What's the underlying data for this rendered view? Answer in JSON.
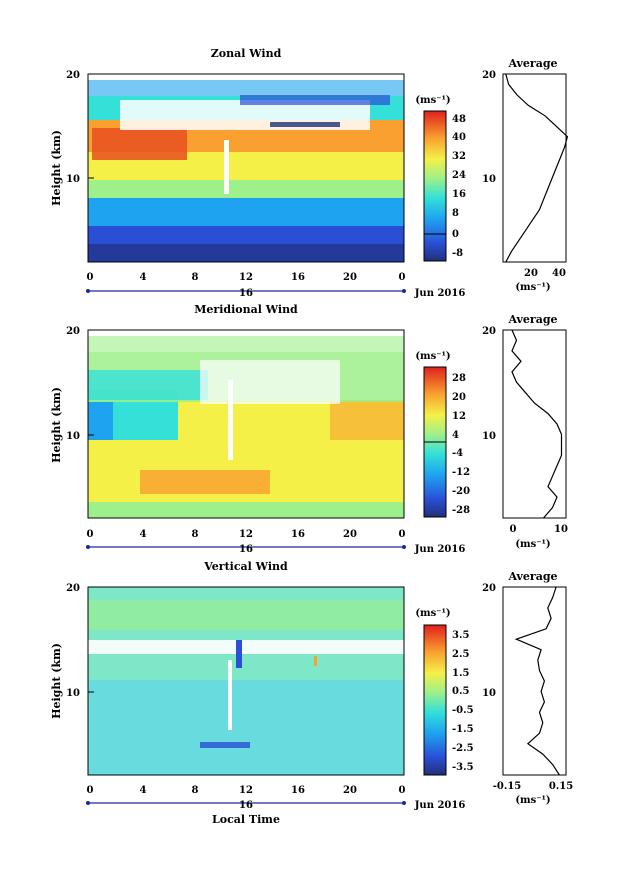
{
  "chart_data": [
    {
      "type": "heatmap",
      "title": "Zonal Wind",
      "ylabel": "Height (km)",
      "xlim": [
        0,
        24
      ],
      "ylim": [
        2,
        20
      ],
      "x_ticks": [
        "0",
        "4",
        "8",
        "12",
        "16",
        "20",
        "0"
      ],
      "y_ticks": [
        "10",
        "20"
      ],
      "date_marker": "16",
      "date_label": "Jun 2016",
      "colorbar": {
        "unit": "(ms⁻¹)",
        "ticks": [
          "48",
          "40",
          "32",
          "24",
          "16",
          "8",
          "0",
          "-8"
        ],
        "range": [
          -10,
          52
        ]
      },
      "average": {
        "title": "Average",
        "x_ticks": [
          "20",
          "40"
        ],
        "xlim": [
          0,
          45
        ],
        "xunit": "(ms⁻¹)",
        "profile": {
          "height": [
            2,
            3,
            4,
            5,
            6,
            7,
            8,
            9,
            10,
            11,
            12,
            13,
            14,
            15,
            16,
            17,
            18,
            19,
            20
          ],
          "value": [
            2,
            6,
            11,
            16,
            21,
            26,
            29,
            32,
            35,
            38,
            41,
            44,
            46,
            38,
            30,
            18,
            10,
            4,
            2
          ]
        }
      }
    },
    {
      "type": "heatmap",
      "title": "Meridional Wind",
      "ylabel": "Height (km)",
      "xlim": [
        0,
        24
      ],
      "ylim": [
        2,
        20
      ],
      "x_ticks": [
        "0",
        "4",
        "8",
        "12",
        "16",
        "20",
        "0"
      ],
      "y_ticks": [
        "10",
        "20"
      ],
      "date_marker": "16",
      "date_label": "Jun 2016",
      "colorbar": {
        "unit": "(ms⁻¹)",
        "ticks": [
          "28",
          "20",
          "12",
          "4",
          "-4",
          "-12",
          "-20",
          "-28"
        ],
        "range": [
          -32,
          32
        ]
      },
      "average": {
        "title": "Average",
        "x_ticks": [
          "0",
          "10"
        ],
        "xlim": [
          -3,
          11
        ],
        "xunit": "(ms⁻¹)",
        "profile": {
          "height": [
            2,
            3,
            4,
            5,
            6,
            7,
            8,
            9,
            10,
            11,
            12,
            13,
            14,
            15,
            16,
            17,
            18,
            19,
            20
          ],
          "value": [
            6,
            8,
            9,
            7,
            8,
            9,
            10,
            10,
            10,
            9,
            7,
            4,
            2,
            0,
            -1,
            1,
            -1,
            0,
            -1
          ]
        }
      }
    },
    {
      "type": "heatmap",
      "title": "Vertical Wind",
      "xlabel": "Local Time",
      "ylabel": "Height (km)",
      "xlim": [
        0,
        24
      ],
      "ylim": [
        2,
        20
      ],
      "x_ticks": [
        "0",
        "4",
        "8",
        "12",
        "16",
        "20",
        "0"
      ],
      "y_ticks": [
        "10",
        "20"
      ],
      "date_marker": "16",
      "date_label": "Jun 2016",
      "colorbar": {
        "unit": "(ms⁻¹)",
        "ticks": [
          "3.5",
          "2.5",
          "1.5",
          "0.5",
          "-0.5",
          "-1.5",
          "-2.5",
          "-3.5"
        ],
        "range": [
          -4,
          4
        ]
      },
      "average": {
        "title": "Average",
        "x_ticks": [
          "-0.15",
          "0.15"
        ],
        "xlim": [
          -0.2,
          0.18
        ],
        "xunit": "(ms⁻¹)",
        "profile": {
          "height": [
            2,
            3,
            4,
            5,
            6,
            7,
            8,
            9,
            10,
            11,
            12,
            13,
            14,
            15,
            16,
            17,
            18,
            19,
            20
          ],
          "value": [
            0.14,
            0.1,
            0.04,
            -0.05,
            0.02,
            0.04,
            0.02,
            0.05,
            0.03,
            0.05,
            0.02,
            0.01,
            0.03,
            -0.12,
            0.06,
            0.09,
            0.07,
            0.1,
            0.12
          ]
        }
      }
    }
  ]
}
